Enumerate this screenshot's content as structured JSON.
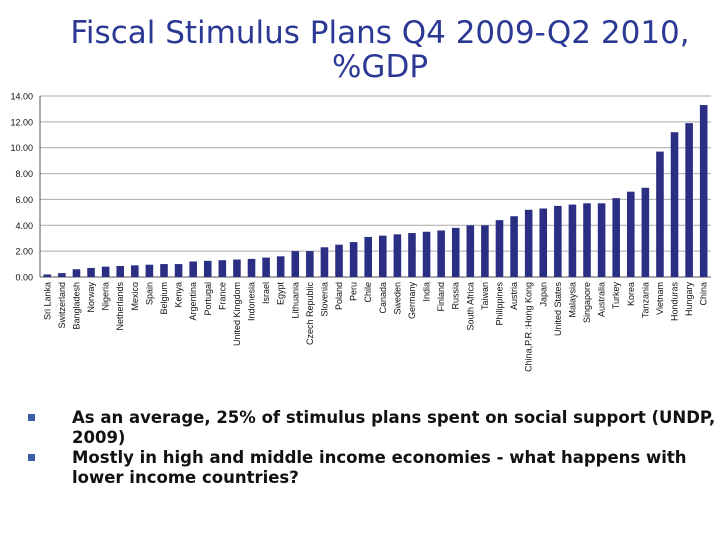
{
  "title_line1": "Fiscal Stimulus Plans Q4 2009-Q2 2010,",
  "title_line2": "%GDP",
  "chart_data": {
    "type": "bar",
    "title": "Fiscal Stimulus Plans Q4 2009-Q2 2010, %GDP",
    "xlabel": "",
    "ylabel": "",
    "ylim": [
      0,
      14
    ],
    "yticks": [
      "0.00",
      "2.00",
      "4.00",
      "6.00",
      "8.00",
      "10.00",
      "12.00",
      "14.00"
    ],
    "bar_color": "#2b2f84",
    "categories": [
      "Sri Lanka",
      "Switzerland",
      "Bangladesh",
      "Norway",
      "Nigeria",
      "Netherlands",
      "Mexico",
      "Spain",
      "Belgium",
      "Kenya",
      "Argentina",
      "Portugal",
      "France",
      "United Kingdom",
      "Indonesia",
      "Israel",
      "Egypt",
      "Lithuania",
      "Czech Republic",
      "Slovenia",
      "Poland",
      "Peru",
      "Chile",
      "Canada",
      "Sweden",
      "Germany",
      "India",
      "Finland",
      "Russia",
      "South Africa",
      "Taiwan",
      "Philippines",
      "Austria",
      "China,P.R.:Hong Kong",
      "Japan",
      "United States",
      "Malaysia",
      "Singapore",
      "Australia",
      "Turkey",
      "Korea",
      "Tanzania",
      "Vietnam",
      "Honduras",
      "Hungary",
      "China"
    ],
    "values": [
      0.2,
      0.3,
      0.6,
      0.7,
      0.8,
      0.85,
      0.9,
      0.95,
      1.0,
      1.0,
      1.2,
      1.25,
      1.3,
      1.35,
      1.4,
      1.5,
      1.6,
      2.0,
      2.0,
      2.3,
      2.5,
      2.7,
      3.1,
      3.2,
      3.3,
      3.4,
      3.5,
      3.6,
      3.8,
      4.0,
      4.0,
      4.4,
      4.7,
      5.2,
      5.3,
      5.5,
      5.6,
      5.7,
      5.7,
      6.1,
      6.6,
      6.9,
      9.7,
      11.2,
      11.9,
      13.3
    ]
  },
  "bullets": [
    "As an average, 25% of stimulus plans spent on social support (UNDP, 2009)",
    "Mostly in high and middle income economies - what happens with lower income countries?"
  ]
}
